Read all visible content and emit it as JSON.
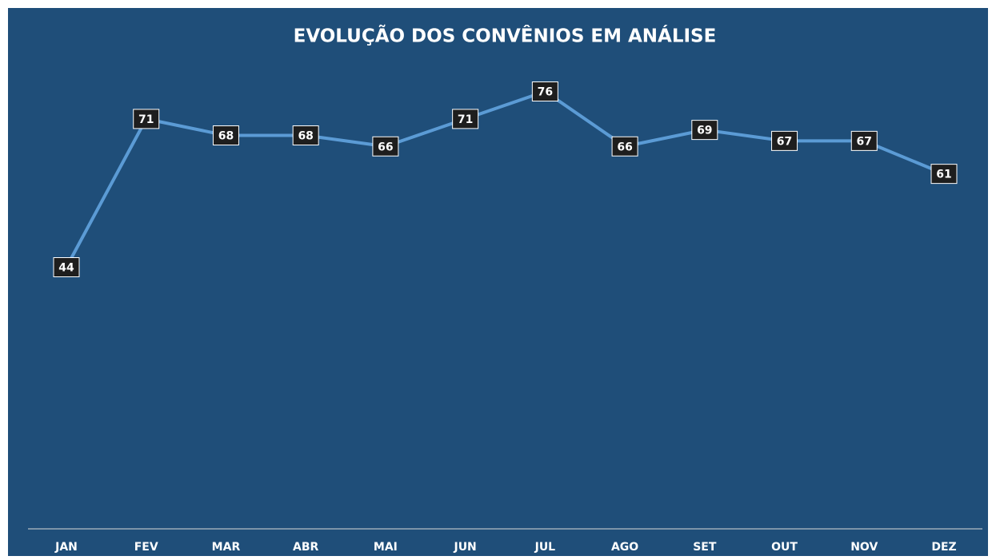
{
  "chart_data": {
    "type": "line",
    "title": "EVOLUÇÃO DOS CONVÊNIOS EM ANÁLISE",
    "categories": [
      "JAN",
      "FEV",
      "MAR",
      "ABR",
      "MAI",
      "JUN",
      "JUL",
      "AGO",
      "SET",
      "OUT",
      "NOV",
      "DEZ"
    ],
    "values": [
      44,
      71,
      68,
      68,
      66,
      71,
      76,
      66,
      69,
      67,
      67,
      61
    ],
    "color": "#5b9bd5",
    "ylim": [
      0,
      80
    ],
    "grid": false
  }
}
